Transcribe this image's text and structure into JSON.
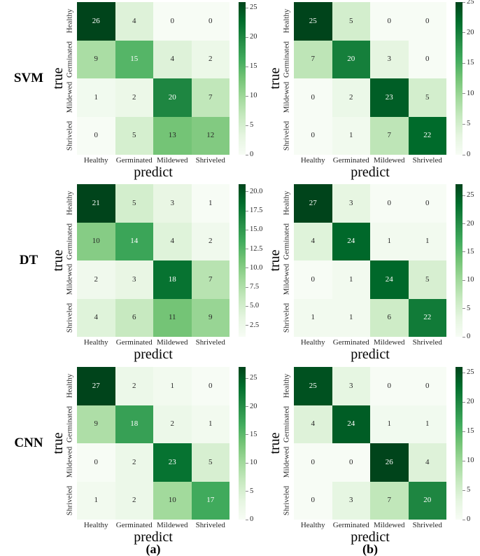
{
  "figure": {
    "background": "#ffffff",
    "colormap": {
      "name": "Greens",
      "stops": [
        "#f7fcf5",
        "#e5f5e0",
        "#c7e9c0",
        "#a1d99b",
        "#74c476",
        "#41ab5d",
        "#238b45",
        "#006d2c",
        "#00441b"
      ]
    },
    "cell_text_light": "#ffffff",
    "cell_text_dark": "#262626",
    "tick_text_color": "#262626",
    "captions": [
      {
        "text": "(a)"
      },
      {
        "text": "(b)"
      }
    ]
  },
  "chart_data": [
    {
      "type": "heatmap",
      "model": "SVM",
      "model_label": "SVM",
      "subfigure": "a",
      "xlabel": "predict",
      "ylabel": "true",
      "categories": [
        "Healthy",
        "Germinated",
        "Mildewed",
        "Shriveled"
      ],
      "matrix": [
        [
          26,
          4,
          0,
          0
        ],
        [
          9,
          15,
          4,
          2
        ],
        [
          1,
          2,
          20,
          7
        ],
        [
          0,
          5,
          13,
          12
        ]
      ],
      "vmin": 0,
      "vmax": 26,
      "colorbar_ticks": [
        {
          "value": 0,
          "label": "0"
        },
        {
          "value": 5,
          "label": "5"
        },
        {
          "value": 10,
          "label": "10"
        },
        {
          "value": 15,
          "label": "15"
        },
        {
          "value": 20,
          "label": "20"
        },
        {
          "value": 25,
          "label": "25"
        }
      ]
    },
    {
      "type": "heatmap",
      "model": "SVM",
      "subfigure": "b",
      "xlabel": "predict",
      "ylabel": "true",
      "categories": [
        "Healthy",
        "Germinated",
        "Mildewed",
        "Shriveled"
      ],
      "matrix": [
        [
          25,
          5,
          0,
          0
        ],
        [
          7,
          20,
          3,
          0
        ],
        [
          0,
          2,
          23,
          5
        ],
        [
          0,
          1,
          7,
          22
        ]
      ],
      "vmin": 0,
      "vmax": 25,
      "colorbar_ticks": [
        {
          "value": 0,
          "label": "0"
        },
        {
          "value": 5,
          "label": "5"
        },
        {
          "value": 10,
          "label": "10"
        },
        {
          "value": 15,
          "label": "15"
        },
        {
          "value": 20,
          "label": "20"
        },
        {
          "value": 25,
          "label": "25"
        }
      ]
    },
    {
      "type": "heatmap",
      "model": "DT",
      "model_label": "DT",
      "subfigure": "a",
      "xlabel": "predict",
      "ylabel": "true",
      "categories": [
        "Healthy",
        "Germinated",
        "Mildewed",
        "Shriveled"
      ],
      "matrix": [
        [
          21,
          5,
          3,
          1
        ],
        [
          10,
          14,
          4,
          2
        ],
        [
          2,
          3,
          18,
          7
        ],
        [
          4,
          6,
          11,
          9
        ]
      ],
      "vmin": 1,
      "vmax": 21,
      "colorbar_ticks": [
        {
          "value": 2.5,
          "label": "2.5"
        },
        {
          "value": 5,
          "label": "5.0"
        },
        {
          "value": 7.5,
          "label": "7.5"
        },
        {
          "value": 10,
          "label": "10.0"
        },
        {
          "value": 12.5,
          "label": "12.5"
        },
        {
          "value": 15,
          "label": "15.0"
        },
        {
          "value": 17.5,
          "label": "17.5"
        },
        {
          "value": 20,
          "label": "20.0"
        }
      ]
    },
    {
      "type": "heatmap",
      "model": "DT",
      "subfigure": "b",
      "xlabel": "predict",
      "ylabel": "true",
      "categories": [
        "Healthy",
        "Germinated",
        "Mildewed",
        "Shriveled"
      ],
      "matrix": [
        [
          27,
          3,
          0,
          0
        ],
        [
          4,
          24,
          1,
          1
        ],
        [
          0,
          1,
          24,
          5
        ],
        [
          1,
          1,
          6,
          22
        ]
      ],
      "vmin": 0,
      "vmax": 27,
      "colorbar_ticks": [
        {
          "value": 0,
          "label": "0"
        },
        {
          "value": 5,
          "label": "5"
        },
        {
          "value": 10,
          "label": "10"
        },
        {
          "value": 15,
          "label": "15"
        },
        {
          "value": 20,
          "label": "20"
        },
        {
          "value": 25,
          "label": "25"
        }
      ]
    },
    {
      "type": "heatmap",
      "model": "CNN",
      "model_label": "CNN",
      "subfigure": "a",
      "xlabel": "predict",
      "ylabel": "true",
      "categories": [
        "Healthy",
        "Germinated",
        "Mildewed",
        "Shriveled"
      ],
      "matrix": [
        [
          27,
          2,
          1,
          0
        ],
        [
          9,
          18,
          2,
          1
        ],
        [
          0,
          2,
          23,
          5
        ],
        [
          1,
          2,
          10,
          17
        ]
      ],
      "vmin": 0,
      "vmax": 27,
      "colorbar_ticks": [
        {
          "value": 0,
          "label": "0"
        },
        {
          "value": 5,
          "label": "5"
        },
        {
          "value": 10,
          "label": "10"
        },
        {
          "value": 15,
          "label": "15"
        },
        {
          "value": 20,
          "label": "20"
        },
        {
          "value": 25,
          "label": "25"
        }
      ]
    },
    {
      "type": "heatmap",
      "model": "CNN",
      "subfigure": "b",
      "xlabel": "predict",
      "ylabel": "true",
      "categories": [
        "Healthy",
        "Germinated",
        "Mildewed",
        "Shriveled"
      ],
      "matrix": [
        [
          25,
          3,
          0,
          0
        ],
        [
          4,
          24,
          1,
          1
        ],
        [
          0,
          0,
          26,
          4
        ],
        [
          0,
          3,
          7,
          20
        ]
      ],
      "vmin": 0,
      "vmax": 26,
      "colorbar_ticks": [
        {
          "value": 0,
          "label": "0"
        },
        {
          "value": 5,
          "label": "5"
        },
        {
          "value": 10,
          "label": "10"
        },
        {
          "value": 15,
          "label": "15"
        },
        {
          "value": 20,
          "label": "20"
        },
        {
          "value": 25,
          "label": "25"
        }
      ]
    }
  ]
}
